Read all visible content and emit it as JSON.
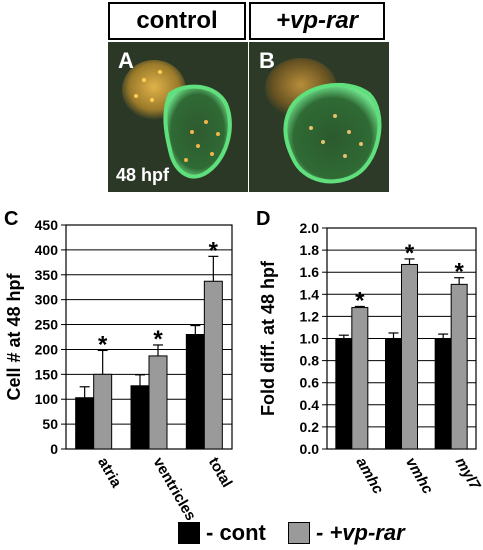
{
  "header": {
    "control_label": "control",
    "treatment_label": "+vp-rar"
  },
  "micrographs": {
    "a_letter": "A",
    "b_letter": "B",
    "stage_label": "48 hpf"
  },
  "colors": {
    "control": "#000000",
    "treatment": "#9a9a9a",
    "ventricle_fluor": "#3fd36a",
    "atrium_fluor": "#c8a23a"
  },
  "legend": {
    "control_label": "- cont",
    "treatment_label": "- +vp-rar"
  },
  "chart_data": [
    {
      "panel": "C",
      "type": "bar",
      "ylabel": "Cell # at 48 hpf",
      "ylim": [
        0,
        450
      ],
      "yticks": [
        0,
        50,
        100,
        150,
        200,
        250,
        300,
        350,
        400,
        450
      ],
      "categories": [
        "atria",
        "ventricles",
        "total"
      ],
      "grid": true,
      "series": [
        {
          "name": "cont",
          "values": [
            103,
            127,
            230
          ],
          "errors": [
            22,
            22,
            18
          ]
        },
        {
          "name": "+vp-rar",
          "values": [
            150,
            187,
            337
          ],
          "errors": [
            48,
            22,
            50
          ]
        }
      ],
      "significance": [
        "*",
        "*",
        "*"
      ]
    },
    {
      "panel": "D",
      "type": "bar",
      "ylabel": "Fold diff. at 48 hpf",
      "ylim": [
        0,
        2.0
      ],
      "yticks": [
        "0.0",
        "0.2",
        "0.4",
        "0.6",
        "0.8",
        "1.0",
        "1.2",
        "1.4",
        "1.6",
        "1.8",
        "2.0"
      ],
      "categories": [
        "amhc",
        "vmhc",
        "myl7"
      ],
      "categories_italic": true,
      "grid": true,
      "series": [
        {
          "name": "cont",
          "values": [
            1.0,
            1.0,
            1.0
          ],
          "errors": [
            0.03,
            0.05,
            0.04
          ]
        },
        {
          "name": "+vp-rar",
          "values": [
            1.28,
            1.67,
            1.49
          ],
          "errors": [
            0.01,
            0.05,
            0.06
          ]
        }
      ],
      "significance": [
        "*",
        "*",
        "*"
      ]
    }
  ]
}
